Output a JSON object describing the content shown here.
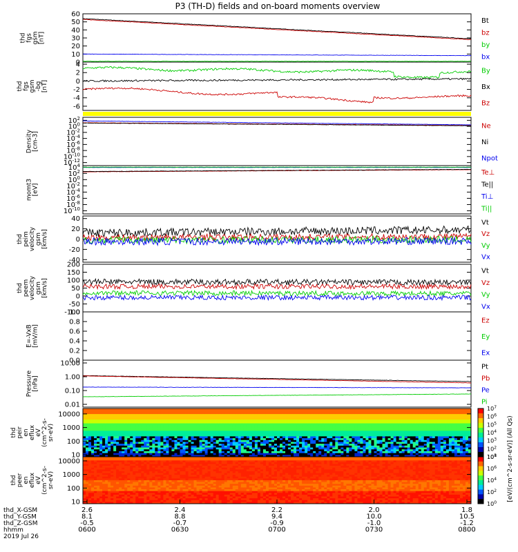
{
  "title": "P3 (TH-D) fields and on-board moments overview",
  "colors": {
    "black": "#000000",
    "red": "#cc0000",
    "green": "#00cc00",
    "blue": "#0000ee",
    "yellow": "#ffff00"
  },
  "chart_data": [
    {
      "type": "line",
      "ylabel": [
        "thd",
        "fgs",
        "gsm",
        "[nT]"
      ],
      "yticks": [
        "0",
        "10",
        "20",
        "30",
        "40",
        "50",
        "60"
      ],
      "ylim": [
        0,
        60
      ],
      "series": [
        {
          "name": "Bt",
          "color": "#000000",
          "start": 54,
          "end": 29,
          "noise": 0.3
        },
        {
          "name": "bz",
          "color": "#cc0000",
          "start": 53,
          "end": 28,
          "noise": 0.3
        },
        {
          "name": "by",
          "color": "#00cc00",
          "start": 1,
          "end": 1,
          "noise": 0.2
        },
        {
          "name": "bx",
          "color": "#0000ee",
          "start": 10,
          "end": 8,
          "noise": 0.2
        }
      ]
    },
    {
      "type": "line",
      "ylabel": [
        "thd",
        "fgs",
        "gsm",
        "-bg",
        "[nT]"
      ],
      "yticks": [
        "-6",
        "-4",
        "-2",
        "0",
        "2",
        "4"
      ],
      "ylim": [
        -7,
        4.5
      ],
      "series": [
        {
          "name": "By",
          "color": "#00cc00",
          "start": 3,
          "end": 2,
          "noise": 0.25
        },
        {
          "name": "Bx",
          "color": "#000000",
          "start": 0,
          "end": 0.5,
          "noise": 0.2
        },
        {
          "name": "Bz",
          "color": "#cc0000",
          "start": -2,
          "end": -4,
          "noise": 0.2
        }
      ]
    },
    {
      "type": "line",
      "ylabel": [
        "Density",
        "[cm-3]"
      ],
      "yticks": [
        "10^-12",
        "10^-10",
        "10^-8",
        "10^-6",
        "10^-4",
        "10^-2",
        "10^0",
        "10^2"
      ],
      "ylim": [
        -13,
        3
      ],
      "log": true,
      "series": [
        {
          "name": "Ne",
          "color": "#cc0000",
          "start": 1.2,
          "end": 0.3,
          "noise": 0.05
        },
        {
          "name": "Ni",
          "color": "#000000",
          "start": 1.1,
          "end": 0.2,
          "noise": 0.05
        },
        {
          "name": "Npot",
          "color": "#0000ee",
          "start": 1.8,
          "end": 0.5,
          "noise": 0.05
        }
      ]
    },
    {
      "type": "line",
      "ylabel": [
        "momt3",
        "[eV]"
      ],
      "yticks": [
        "10^-10",
        "10^-8",
        "10^-6",
        "10^-4",
        "10^-2",
        "10^0",
        "10^2",
        "10^4"
      ],
      "ylim": [
        -11,
        4.5
      ],
      "log": true,
      "series": [
        {
          "name": "Te⊥",
          "color": "#cc0000",
          "start": 2.5,
          "end": 3.2,
          "noise": 0.05
        },
        {
          "name": "Te||",
          "color": "#000000",
          "start": 2.6,
          "end": 3.3,
          "noise": 0.05
        },
        {
          "name": "Ti⊥",
          "color": "#0000ee",
          "start": 3.9,
          "end": 3.9,
          "noise": 0.03
        },
        {
          "name": "Ti||",
          "color": "#00cc00",
          "start": 4.0,
          "end": 4.0,
          "noise": 0.03
        }
      ]
    },
    {
      "type": "line",
      "ylabel": [
        "thd",
        "peim",
        "velocity",
        "gsm",
        "[km/s]"
      ],
      "yticks": [
        "-40",
        "-20",
        "0",
        "20",
        "40"
      ],
      "ylim": [
        -45,
        45
      ],
      "series": [
        {
          "name": "Vt",
          "color": "#000000",
          "start": 12,
          "end": 18,
          "noise": 8
        },
        {
          "name": "Vz",
          "color": "#cc0000",
          "start": 3,
          "end": 5,
          "noise": 6
        },
        {
          "name": "Vy",
          "color": "#00cc00",
          "start": -2,
          "end": -1,
          "noise": 7
        },
        {
          "name": "Vx",
          "color": "#0000ee",
          "start": -5,
          "end": -4,
          "noise": 7
        }
      ]
    },
    {
      "type": "line",
      "ylabel": [
        "thd",
        "peem",
        "velocity",
        "gsm",
        "[km/s]"
      ],
      "yticks": [
        "-100",
        "-50",
        "0",
        "50",
        "100",
        "150",
        "200"
      ],
      "ylim": [
        -100,
        200
      ],
      "series": [
        {
          "name": "Vt",
          "color": "#000000",
          "start": 90,
          "end": 85,
          "noise": 18
        },
        {
          "name": "Vz",
          "color": "#cc0000",
          "start": 60,
          "end": 60,
          "noise": 15
        },
        {
          "name": "Vy",
          "color": "#00cc00",
          "start": 20,
          "end": 15,
          "noise": 15
        },
        {
          "name": "Vx",
          "color": "#0000ee",
          "start": -10,
          "end": -10,
          "noise": 15
        }
      ]
    },
    {
      "type": "line",
      "ylabel": [
        "E=-VxB",
        "[mV/m]"
      ],
      "yticks": [
        "0.0",
        "0.2",
        "0.4",
        "0.6",
        "0.8",
        "1.0"
      ],
      "ylim": [
        0,
        1
      ],
      "series": [
        {
          "name": "Ez",
          "color": "#cc0000",
          "start": null,
          "end": null,
          "noise": 0
        },
        {
          "name": "Ey",
          "color": "#00cc00",
          "start": null,
          "end": null,
          "noise": 0
        },
        {
          "name": "Ex",
          "color": "#0000ee",
          "start": null,
          "end": null,
          "noise": 0
        }
      ]
    },
    {
      "type": "line",
      "ylabel": [
        "Pressure",
        "[nPa]"
      ],
      "yticks": [
        "0.01",
        "0.10",
        "1.00",
        "10.00"
      ],
      "ylim": [
        -2.2,
        1.2
      ],
      "log": true,
      "series": [
        {
          "name": "Pt",
          "color": "#000000",
          "start": 0.08,
          "end": -0.35,
          "noise": 0.01
        },
        {
          "name": "Pb",
          "color": "#cc0000",
          "start": 0.06,
          "end": -0.45,
          "noise": 0.01
        },
        {
          "name": "Pe",
          "color": "#0000ee",
          "start": -0.75,
          "end": -0.8,
          "noise": 0.01
        },
        {
          "name": "Pi",
          "color": "#00cc00",
          "start": -1.45,
          "end": -1.25,
          "noise": 0.01
        }
      ]
    },
    {
      "type": "heatmap",
      "ylabel": [
        "thd",
        "peir",
        "en",
        "eflux",
        "eV",
        "(cm^2-s-",
        "sr-eV)"
      ],
      "yticks": [
        "10",
        "100",
        "1000",
        "10000"
      ],
      "ylim": [
        0.85,
        4.4
      ],
      "log": true
    },
    {
      "type": "heatmap",
      "ylabel": [
        "thd",
        "peer",
        "en",
        "eflux",
        "eV",
        "(cm^2-s-",
        "sr-eV)"
      ],
      "yticks": [
        "10",
        "100",
        "1000",
        "10000"
      ],
      "ylim": [
        0.85,
        4.3
      ],
      "log": true
    }
  ],
  "colorbar": {
    "top": {
      "ticks": [
        "10^1",
        "10^2",
        "10^3",
        "10^4",
        "10^5",
        "10^6",
        "10^7"
      ]
    },
    "bottom": {
      "ticks": [
        "10^0",
        "10^2",
        "10^4",
        "10^6",
        "10^8"
      ]
    },
    "label": "[eV/(cm^2-s-sr-eV)] (All Qs)"
  },
  "xaxis": {
    "rows": [
      {
        "name": "thd_X-GSM",
        "values": [
          "2.6",
          "2.4",
          "2.2",
          "2.0",
          "1.8"
        ]
      },
      {
        "name": "thd_Y-GSM",
        "values": [
          "8.1",
          "8.8",
          "9.4",
          "10.0",
          "10.5"
        ]
      },
      {
        "name": "thd_Z-GSM",
        "values": [
          "-0.5",
          "-0.7",
          "-0.9",
          "-1.0",
          "-1.2"
        ]
      },
      {
        "name": "hhmm",
        "values": [
          "0600",
          "0630",
          "0700",
          "0730",
          "0800"
        ]
      }
    ],
    "date": "2019 Jul 26"
  }
}
